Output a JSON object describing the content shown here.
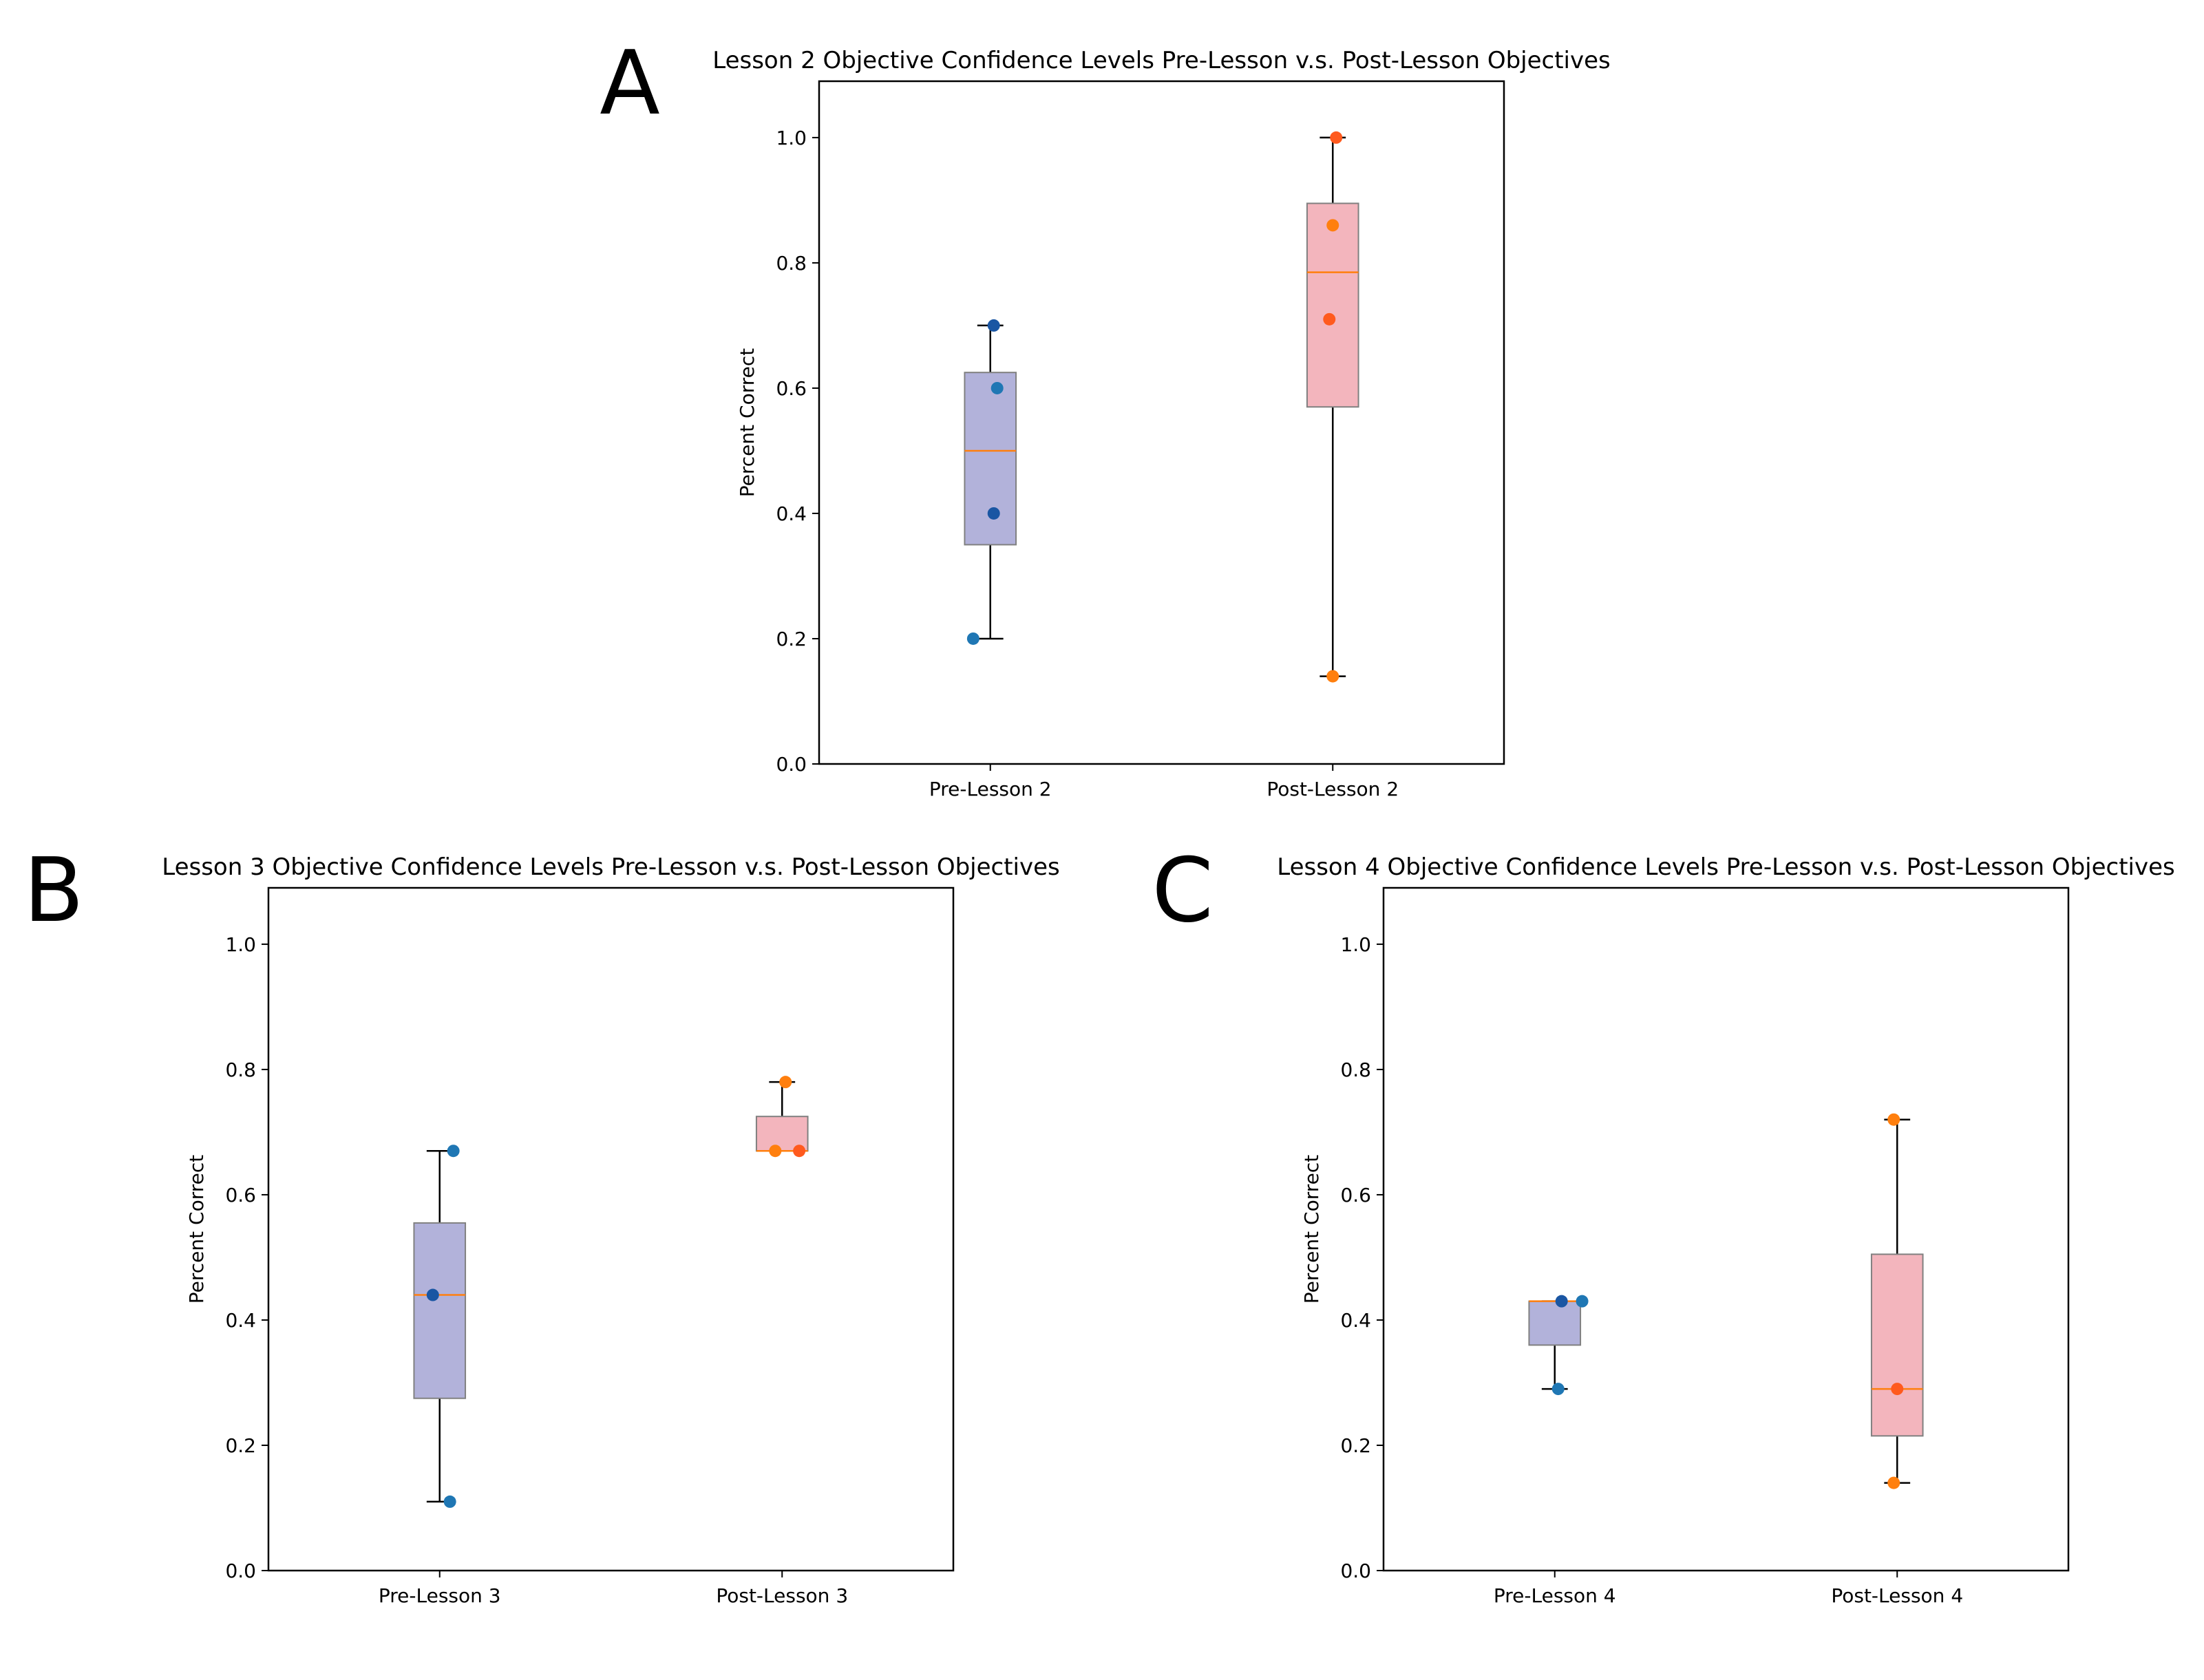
{
  "figure": {
    "colors": {
      "pre_box_fill": "#b2b2da",
      "post_box_fill": "#f3b5bd",
      "box_edge": "#808080",
      "median_line": "#ff7f0e",
      "pre_points": [
        "#1f77b4",
        "#1a56a3"
      ],
      "post_points": [
        "#ff7f0e",
        "#ff5a1e"
      ],
      "whisker": "#000000"
    }
  },
  "chart_data": [
    {
      "type": "box",
      "panel_label": "A",
      "title": "Lesson 2 Objective Confidence Levels Pre-Lesson v.s. Post-Lesson Objectives",
      "xlabel": "",
      "ylabel": "Percent Correct",
      "ylim": [
        0,
        1.09
      ],
      "yticks": [
        0.0,
        0.2,
        0.4,
        0.6,
        0.8,
        1.0
      ],
      "ytick_labels": [
        "0.0",
        "0.2",
        "0.4",
        "0.6",
        "0.8",
        "1.0"
      ],
      "categories": [
        "Pre-Lesson 2",
        "Post-Lesson 2"
      ],
      "boxes": [
        {
          "whisker_low": 0.2,
          "q1": 0.35,
          "median": 0.5,
          "q3": 0.625,
          "whisker_high": 0.7
        },
        {
          "whisker_low": 0.14,
          "q1": 0.57,
          "median": 0.785,
          "q3": 0.895,
          "whisker_high": 1.0
        }
      ],
      "points": [
        [
          {
            "x": 0.95,
            "y": 0.2
          },
          {
            "x": 1.01,
            "y": 0.4
          },
          {
            "x": 1.02,
            "y": 0.6
          },
          {
            "x": 1.01,
            "y": 0.7
          }
        ],
        [
          {
            "x": 2.0,
            "y": 0.14
          },
          {
            "x": 1.99,
            "y": 0.71
          },
          {
            "x": 2.0,
            "y": 0.86
          },
          {
            "x": 2.01,
            "y": 1.0
          }
        ]
      ]
    },
    {
      "type": "box",
      "panel_label": "B",
      "title": "Lesson 3 Objective Confidence Levels Pre-Lesson v.s. Post-Lesson Objectives",
      "xlabel": "",
      "ylabel": "Percent Correct",
      "ylim": [
        0,
        1.09
      ],
      "yticks": [
        0.0,
        0.2,
        0.4,
        0.6,
        0.8,
        1.0
      ],
      "ytick_labels": [
        "0.0",
        "0.2",
        "0.4",
        "0.6",
        "0.8",
        "1.0"
      ],
      "categories": [
        "Pre-Lesson 3",
        "Post-Lesson 3"
      ],
      "boxes": [
        {
          "whisker_low": 0.11,
          "q1": 0.275,
          "median": 0.44,
          "q3": 0.555,
          "whisker_high": 0.67
        },
        {
          "whisker_low": 0.67,
          "q1": 0.67,
          "median": 0.67,
          "q3": 0.725,
          "whisker_high": 0.78
        }
      ],
      "points": [
        [
          {
            "x": 1.03,
            "y": 0.11
          },
          {
            "x": 0.98,
            "y": 0.44
          },
          {
            "x": 1.04,
            "y": 0.67
          }
        ],
        [
          {
            "x": 1.98,
            "y": 0.67
          },
          {
            "x": 2.05,
            "y": 0.67
          },
          {
            "x": 2.01,
            "y": 0.78
          }
        ]
      ]
    },
    {
      "type": "box",
      "panel_label": "C",
      "title": "Lesson 4 Objective Confidence Levels Pre-Lesson v.s. Post-Lesson Objectives",
      "xlabel": "",
      "ylabel": "Percent Correct",
      "ylim": [
        0,
        1.09
      ],
      "yticks": [
        0.0,
        0.2,
        0.4,
        0.6,
        0.8,
        1.0
      ],
      "ytick_labels": [
        "0.0",
        "0.2",
        "0.4",
        "0.6",
        "0.8",
        "1.0"
      ],
      "categories": [
        "Pre-Lesson 4",
        "Post-Lesson 4"
      ],
      "boxes": [
        {
          "whisker_low": 0.29,
          "q1": 0.36,
          "median": 0.43,
          "q3": 0.43,
          "whisker_high": 0.43
        },
        {
          "whisker_low": 0.14,
          "q1": 0.215,
          "median": 0.29,
          "q3": 0.505,
          "whisker_high": 0.72
        }
      ],
      "points": [
        [
          {
            "x": 1.01,
            "y": 0.29
          },
          {
            "x": 1.02,
            "y": 0.43
          },
          {
            "x": 1.08,
            "y": 0.43
          }
        ],
        [
          {
            "x": 1.99,
            "y": 0.14
          },
          {
            "x": 2.0,
            "y": 0.29
          },
          {
            "x": 1.99,
            "y": 0.72
          }
        ]
      ]
    }
  ]
}
